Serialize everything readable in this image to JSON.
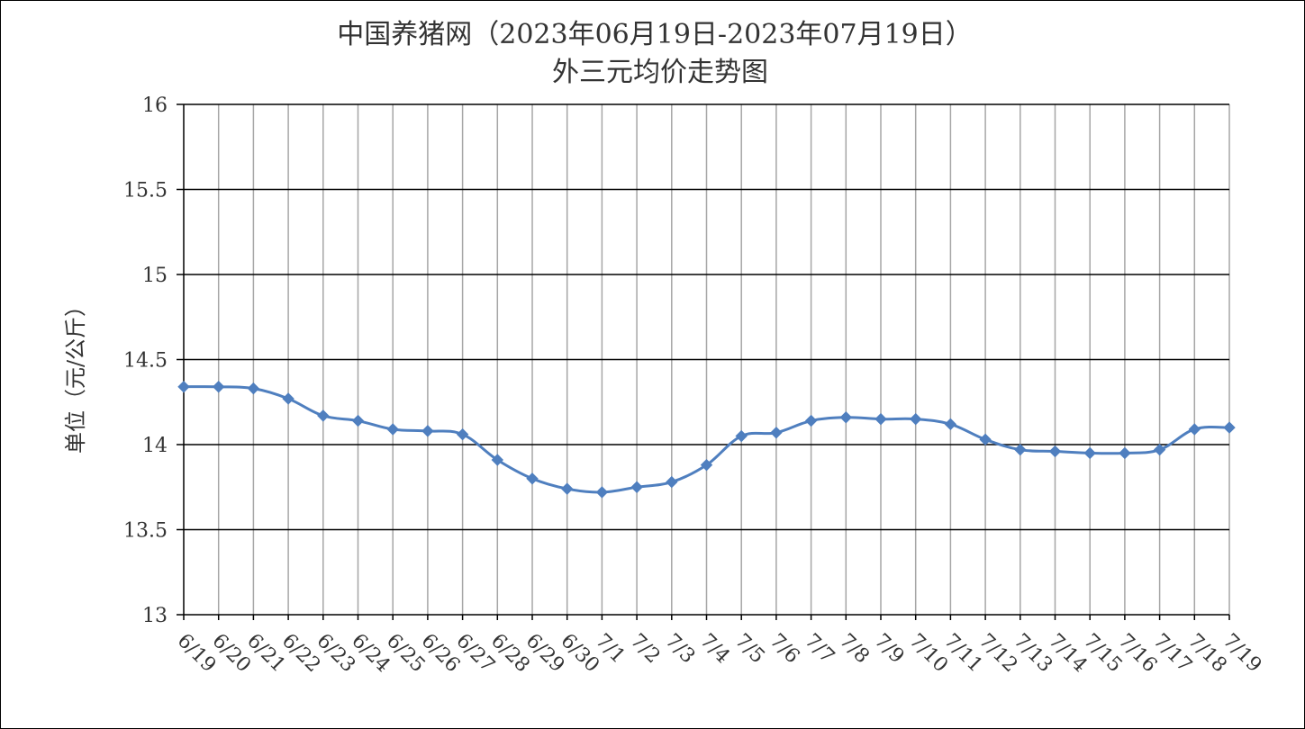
{
  "colors": {
    "series": "#4f7fbf",
    "grid": "#000000",
    "vgrid": "#a6a6a6",
    "text": "#333333"
  },
  "chart_data": {
    "type": "line",
    "title": "中国养猪网（2023年06月19日-2023年07月19日）",
    "subtitle": "外三元均价走势图",
    "xlabel": "",
    "ylabel": "单位（元/公斤）",
    "ylim": [
      13,
      16
    ],
    "yticks": [
      13,
      13.5,
      14,
      14.5,
      15,
      15.5,
      16
    ],
    "ytick_labels": [
      "13",
      "13.5",
      "14",
      "14.5",
      "15",
      "15.5",
      "16"
    ],
    "grid": true,
    "legend": "none",
    "marker": "diamond",
    "smooth": true,
    "categories": [
      "6/19",
      "6/20",
      "6/21",
      "6/22",
      "6/23",
      "6/24",
      "6/25",
      "6/26",
      "6/27",
      "6/28",
      "6/29",
      "6/30",
      "7/1",
      "7/2",
      "7/3",
      "7/4",
      "7/5",
      "7/6",
      "7/7",
      "7/8",
      "7/9",
      "7/10",
      "7/11",
      "7/12",
      "7/13",
      "7/14",
      "7/15",
      "7/16",
      "7/17",
      "7/18",
      "7/19"
    ],
    "series": [
      {
        "values": [
          14.34,
          14.34,
          14.33,
          14.27,
          14.17,
          14.14,
          14.09,
          14.08,
          14.06,
          13.91,
          13.8,
          13.74,
          13.72,
          13.75,
          13.78,
          13.88,
          14.05,
          14.07,
          14.14,
          14.16,
          14.15,
          14.15,
          14.12,
          14.03,
          13.97,
          13.96,
          13.95,
          13.95,
          13.97,
          14.09,
          14.1
        ]
      }
    ]
  }
}
